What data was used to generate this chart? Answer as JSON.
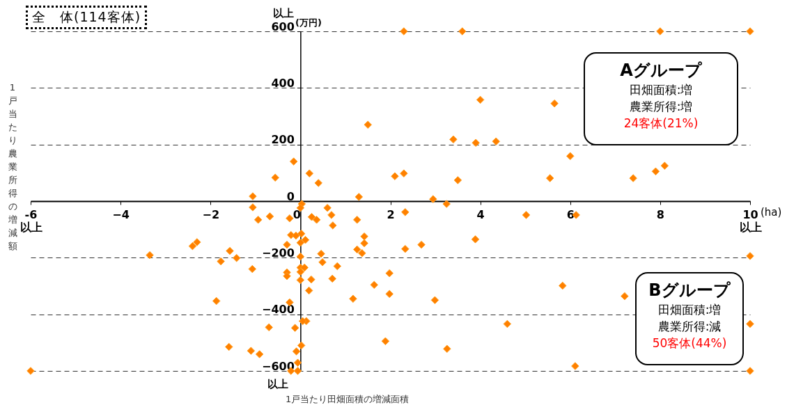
{
  "chart_data": {
    "type": "scatter",
    "title": "全　体(114客体)",
    "xlabel": "1戸当たり田畑面積の増減面積",
    "ylabel": "1戸当たり農業所得の増減額",
    "annotations": [
      "(万円)",
      "(ha)",
      "以上",
      "以上",
      "Aグループ",
      "田畑面積:増",
      "農業所得:増",
      "24客体(21%)",
      "Bグループ",
      "田畑面積:増",
      "農業所得:減",
      "50客体(44%)"
    ],
    "xlim": [
      -6,
      10
    ],
    "ylim": [
      -600,
      600
    ],
    "xticks": [
      {
        "value": -6,
        "label": "-6\n以上"
      },
      -4,
      -2,
      0,
      2,
      4,
      6,
      8,
      {
        "value": 10,
        "label": "10\n以上"
      }
    ],
    "yticks": [
      -600,
      -400,
      -200,
      0,
      200,
      400,
      600
    ],
    "grid": "y",
    "marker": "diamond",
    "series": [
      {
        "color": "#ff8000",
        "x": [
          2.3,
          3.6,
          8.0,
          10,
          1.5,
          4.0,
          5.65,
          3.4,
          3.9,
          4.35,
          6.0,
          2.1,
          2.3,
          3.5,
          5.55,
          7.4,
          7.9,
          8.1,
          1.3,
          2.95,
          3.25,
          0.2,
          0.4,
          -0.15,
          -0.56,
          -1.06,
          -1.06,
          -0.94,
          -0.68,
          -0.24,
          0.03,
          0,
          0.25,
          0.36,
          0.6,
          0.69,
          0.72,
          1.26,
          2.33,
          -0.21,
          0.02,
          0.11,
          0,
          -0.3,
          -0.1,
          1.42,
          1.42,
          1.26,
          1.37,
          2.33,
          2.69,
          3.89,
          5.02,
          6.13,
          0,
          0.46,
          0.49,
          0.82,
          0,
          0.09,
          0,
          -0.3,
          -0.3,
          -1.07,
          0,
          0.24,
          0.71,
          1.98,
          1.64,
          0.19,
          1.98,
          1.17,
          2.99,
          -0.24,
          -1.87,
          0.13,
          0.05,
          -0.12,
          -0.7,
          0.02,
          -0.09,
          -0.06,
          -0.21,
          -0.06,
          1.89,
          3.26,
          -1.59,
          -1.1,
          -0.91,
          -1.77,
          -1.57,
          -1.42,
          -3.35,
          -2.4,
          -2.3,
          -6,
          5.83,
          7.21,
          10,
          10,
          10,
          4.6,
          6.11
        ],
        "values": [
          600,
          600,
          600,
          600,
          270,
          358,
          345,
          218,
          206,
          211,
          159,
          88,
          98,
          74,
          81,
          81,
          105,
          125,
          15,
          7,
          -10,
          98,
          64,
          140,
          83,
          17,
          -22,
          -66,
          -54,
          -61,
          -10,
          -24,
          -56,
          -66,
          -24,
          -49,
          -86,
          -66,
          -39,
          -120,
          -115,
          -137,
          -147,
          -154,
          -122,
          -125,
          -149,
          -171,
          -184,
          -169,
          -154,
          -135,
          -49,
          -49,
          -196,
          -186,
          -216,
          -230,
          -235,
          -235,
          -250,
          -252,
          -265,
          -240,
          -279,
          -277,
          -274,
          -255,
          -296,
          -316,
          -328,
          -345,
          -350,
          -358,
          -353,
          -424,
          -424,
          -448,
          -446,
          -510,
          -531,
          -571,
          -600,
          -600,
          -495,
          -522,
          -515,
          -529,
          -541,
          -213,
          -176,
          -201,
          -191,
          -159,
          -145,
          -600,
          -299,
          -336,
          -194,
          -434,
          -600,
          -434,
          -583
        ]
      }
    ]
  }
}
